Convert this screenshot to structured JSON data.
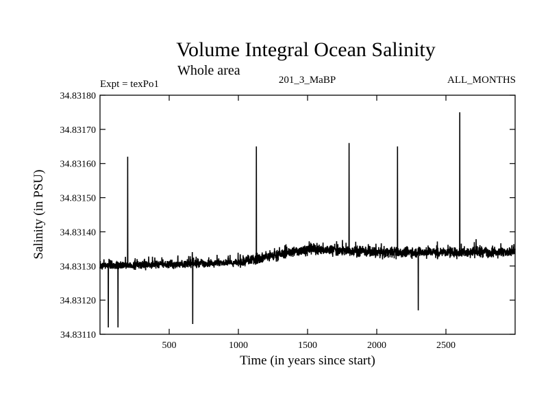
{
  "header": {
    "title": "Volume Integral Ocean Salinity",
    "subtitle": "Whole area",
    "experiment": "Expt = texPo1",
    "run_id": "201_3_MaBP",
    "months": "ALL_MONTHS"
  },
  "chart_data": {
    "type": "line",
    "title": "Volume Integral Ocean Salinity",
    "subtitle": "Whole area",
    "xlabel": "Time (in years since start)",
    "ylabel": "Salinity (in PSU)",
    "xlim": [
      0,
      3000
    ],
    "ylim": [
      34.8311,
      34.8318
    ],
    "xticks": [
      500,
      1000,
      1500,
      2000,
      2500
    ],
    "xtick_labels": [
      "500",
      "1000",
      "1500",
      "2000",
      "2500"
    ],
    "yticks": [
      34.8311,
      34.8312,
      34.8313,
      34.8314,
      34.8315,
      34.8316,
      34.8317,
      34.8318
    ],
    "ytick_labels": [
      "34.83110",
      "34.83120",
      "34.83130",
      "34.83140",
      "34.83150",
      "34.83160",
      "34.83170",
      "34.83180"
    ],
    "grid": false,
    "series": [
      {
        "name": "Salinity",
        "sample_years": 1,
        "mean_trend": [
          {
            "x": 0,
            "y": 34.8313
          },
          {
            "x": 1000,
            "y": 34.83131
          },
          {
            "x": 1500,
            "y": 34.83135
          },
          {
            "x": 2000,
            "y": 34.83134
          },
          {
            "x": 2500,
            "y": 34.83134
          },
          {
            "x": 3000,
            "y": 34.83134
          }
        ],
        "peaks": [
          {
            "x": 200,
            "y": 34.83162
          },
          {
            "x": 1130,
            "y": 34.83165
          },
          {
            "x": 1800,
            "y": 34.83166
          },
          {
            "x": 2150,
            "y": 34.83165
          },
          {
            "x": 2600,
            "y": 34.83175
          }
        ],
        "troughs": [
          {
            "x": 60,
            "y": 34.83112
          },
          {
            "x": 130,
            "y": 34.83112
          },
          {
            "x": 670,
            "y": 34.83113
          },
          {
            "x": 2300,
            "y": 34.83117
          }
        ]
      }
    ]
  }
}
